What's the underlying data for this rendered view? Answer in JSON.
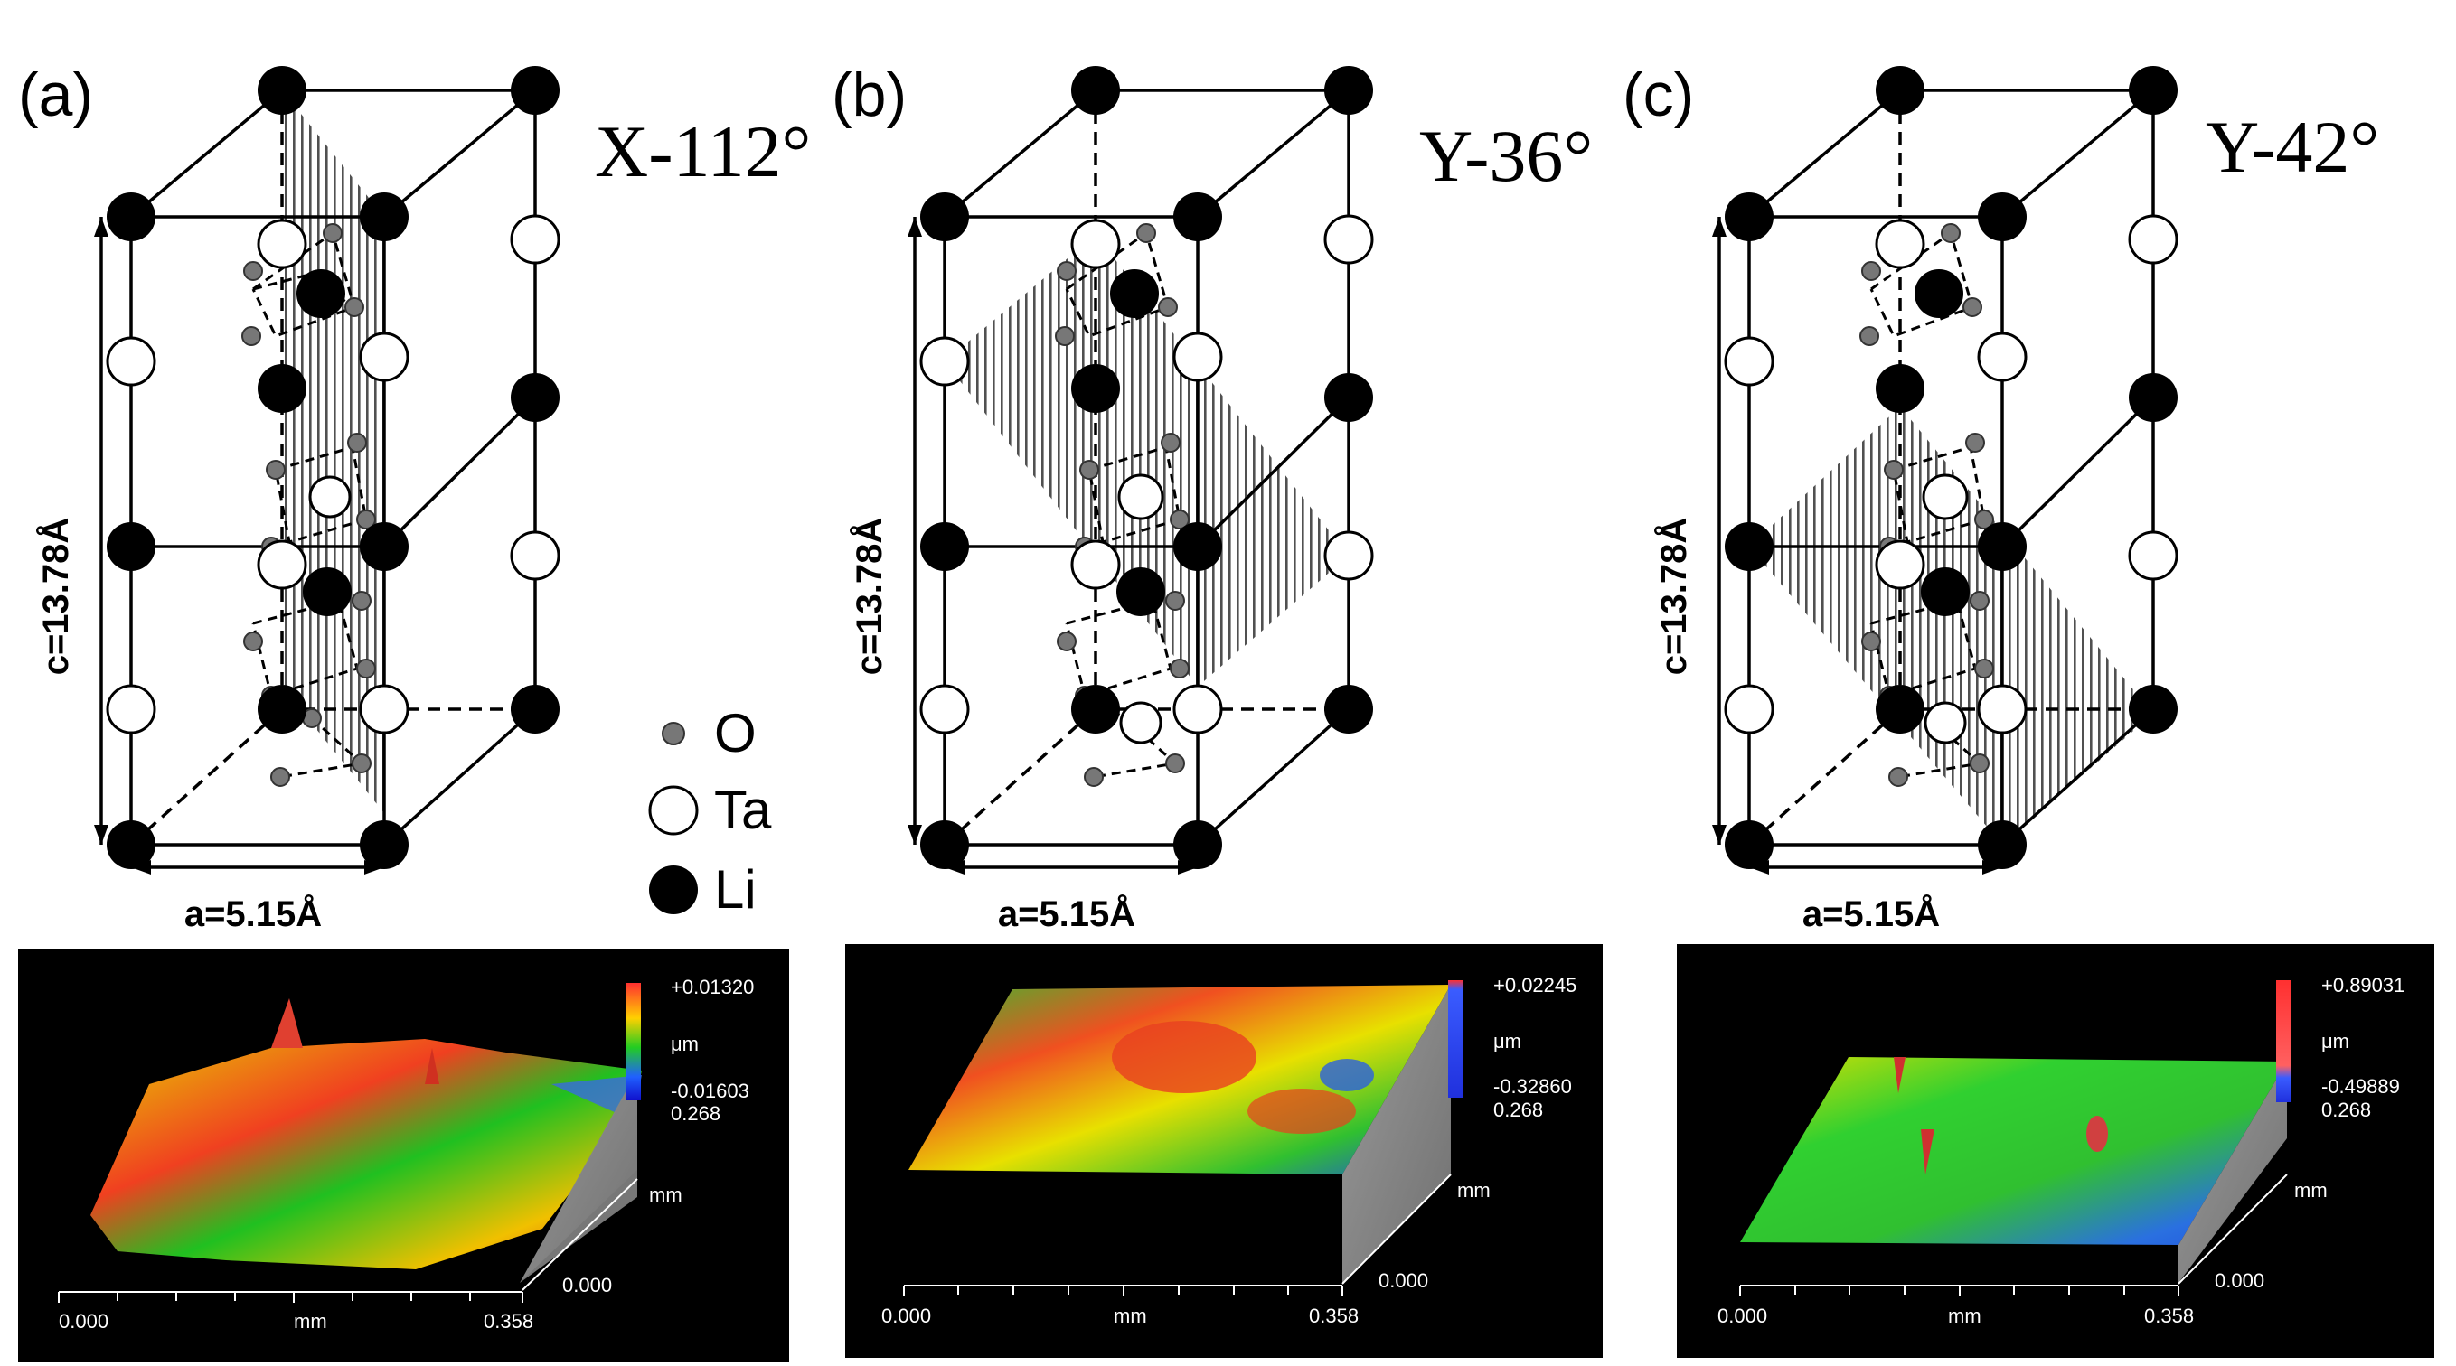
{
  "figure": {
    "panels": [
      {
        "label": "(a)",
        "orientation": "X-112°",
        "c_label": "c=13.78Å",
        "a_label": "a=5.15Å",
        "afm": {
          "z_max": "+0.01320",
          "unit": "μm",
          "z_min": "-0.01603",
          "z_scale": "0.268",
          "y_unit": "mm",
          "y_zero": "0.000",
          "x_start": "0.000",
          "x_unit": "mm",
          "x_end": "0.358"
        }
      },
      {
        "label": "(b)",
        "orientation": "Y-36°",
        "c_label": "c=13.78Å",
        "a_label": "a=5.15Å",
        "afm": {
          "z_max": "+0.02245",
          "unit": "μm",
          "z_min": "-0.32860",
          "z_scale": "0.268",
          "y_unit": "mm",
          "y_zero": "0.000",
          "x_start": "0.000",
          "x_unit": "mm",
          "x_end": "0.358"
        }
      },
      {
        "label": "(c)",
        "orientation": "Y-42°",
        "c_label": "c=13.78Å",
        "a_label": "a=5.15Å",
        "afm": {
          "z_max": "+0.89031",
          "unit": "μm",
          "z_min": "-0.49889",
          "z_scale": "0.268",
          "y_unit": "mm",
          "y_zero": "0.000",
          "x_start": "0.000",
          "x_unit": "mm",
          "x_end": "0.358"
        }
      }
    ],
    "legend": [
      {
        "symbol": "small-grey-sphere",
        "label": "O"
      },
      {
        "symbol": "white-sphere",
        "label": "Ta"
      },
      {
        "symbol": "black-sphere",
        "label": "Li"
      }
    ],
    "colors": {
      "li": "#000000",
      "ta": "#ffffff",
      "o": "#777777",
      "plane": "#4a4a4a",
      "afm_bg": "#000000",
      "afm_side": "#8c8c8c"
    }
  }
}
